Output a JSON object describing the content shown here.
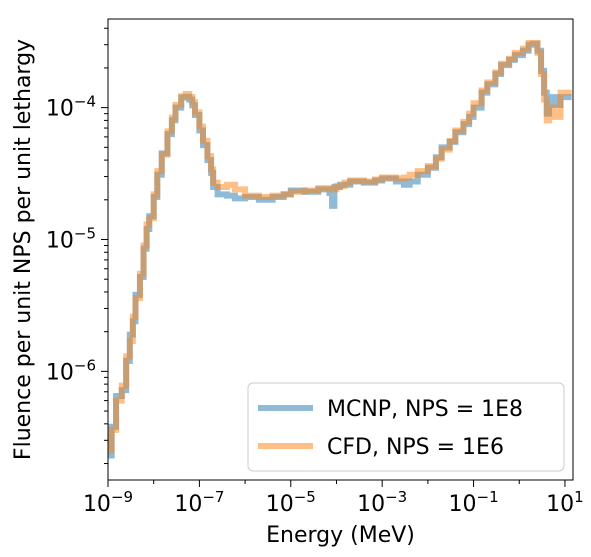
{
  "chart_data": {
    "type": "line",
    "step": true,
    "xscale": "log",
    "yscale": "log",
    "xlabel": "Energy (MeV)",
    "ylabel": "Fluence per unit NPS per unit lethargy",
    "xlim": [
      1e-09,
      15
    ],
    "ylim": [
      1.5e-07,
      0.00047
    ],
    "legend_position": "lower-right",
    "grid": false,
    "x_ticks": [
      {
        "value": 1e-09,
        "base": "10",
        "exp": "−9"
      },
      {
        "value": 1e-07,
        "base": "10",
        "exp": "−7"
      },
      {
        "value": 1e-05,
        "base": "10",
        "exp": "−5"
      },
      {
        "value": 0.001,
        "base": "10",
        "exp": "−3"
      },
      {
        "value": 0.1,
        "base": "10",
        "exp": "−1"
      },
      {
        "value": 10,
        "base": "10",
        "exp": "1"
      }
    ],
    "y_ticks": [
      {
        "value": 1e-06,
        "base": "10",
        "exp": "−6"
      },
      {
        "value": 1e-05,
        "base": "10",
        "exp": "−5"
      },
      {
        "value": 0.0001,
        "base": "10",
        "exp": "−4"
      }
    ],
    "series": [
      {
        "name": "MCNP, NPS = 1E8",
        "color": "#1f77b4",
        "opacity": 0.5,
        "points": [
          [
            1e-09,
            2.3e-07
          ],
          [
            1.2e-09,
            3.8e-07
          ],
          [
            1.5e-09,
            6.5e-07
          ],
          [
            2e-09,
            7.2e-07
          ],
          [
            2.5e-09,
            1.2e-06
          ],
          [
            3e-09,
            1.9e-06
          ],
          [
            3.5e-09,
            2.4e-06
          ],
          [
            4e-09,
            3.8e-06
          ],
          [
            5e-09,
            5.2e-06
          ],
          [
            6e-09,
            8.5e-06
          ],
          [
            7e-09,
            1.2e-05
          ],
          [
            8e-09,
            1.5e-05
          ],
          [
            1e-08,
            2.1e-05
          ],
          [
            1.2e-08,
            3.1e-05
          ],
          [
            1.5e-08,
            4.5e-05
          ],
          [
            2e-08,
            6.3e-05
          ],
          [
            2.5e-08,
            8e-05
          ],
          [
            3e-08,
            0.0001
          ],
          [
            4e-08,
            0.000119
          ],
          [
            5e-08,
            0.000121
          ],
          [
            6e-08,
            0.000115
          ],
          [
            7e-08,
            0.000104
          ],
          [
            8e-08,
            8.8e-05
          ],
          [
            1e-07,
            6.7e-05
          ],
          [
            1.2e-07,
            5.2e-05
          ],
          [
            1.5e-07,
            4e-05
          ],
          [
            1.8e-07,
            3.2e-05
          ],
          [
            2e-07,
            2.5e-05
          ],
          [
            2.5e-07,
            2.2e-05
          ],
          [
            4e-07,
            2.15e-05
          ],
          [
            6e-07,
            2.05e-05
          ],
          [
            1e-06,
            2.1e-05
          ],
          [
            2e-06,
            2e-05
          ],
          [
            4e-06,
            2.1e-05
          ],
          [
            7e-06,
            2.2e-05
          ],
          [
            1e-05,
            2.35e-05
          ],
          [
            2e-05,
            2.3e-05
          ],
          [
            4e-05,
            2.4e-05
          ],
          [
            7e-05,
            2.25e-05
          ],
          [
            8e-05,
            1.8e-05
          ],
          [
            9e-05,
            2.5e-05
          ],
          [
            0.00012,
            2.6e-05
          ],
          [
            0.0002,
            2.75e-05
          ],
          [
            0.0004,
            2.7e-05
          ],
          [
            0.0007,
            2.8e-05
          ],
          [
            0.001,
            2.9e-05
          ],
          [
            0.002,
            2.75e-05
          ],
          [
            0.003,
            2.6e-05
          ],
          [
            0.004,
            2.75e-05
          ],
          [
            0.006,
            3.1e-05
          ],
          [
            0.01,
            3.5e-05
          ],
          [
            0.015,
            4.2e-05
          ],
          [
            0.02,
            5e-05
          ],
          [
            0.03,
            5.5e-05
          ],
          [
            0.04,
            6.5e-05
          ],
          [
            0.06,
            7.5e-05
          ],
          [
            0.08,
            8.5e-05
          ],
          [
            0.1,
            0.0001
          ],
          [
            0.15,
            0.00013
          ],
          [
            0.2,
            0.00015
          ],
          [
            0.3,
            0.00018
          ],
          [
            0.4,
            0.00021
          ],
          [
            0.6,
            0.00023
          ],
          [
            0.8,
            0.00025
          ],
          [
            1.2,
            0.00027
          ],
          [
            1.6,
            0.0003
          ],
          [
            2.0,
            0.000305
          ],
          [
            2.5,
            0.00027
          ],
          [
            3.0,
            0.00019
          ],
          [
            3.5,
            0.00013
          ],
          [
            4.0,
            9e-05
          ],
          [
            4.5,
            0.00012
          ],
          [
            6,
            0.000105
          ],
          [
            8,
            0.00012
          ],
          [
            10,
            0.00012
          ]
        ]
      },
      {
        "name": "CFD, NPS = 1E6",
        "color": "#ff7f0e",
        "opacity": 0.5,
        "points": [
          [
            1e-09,
            2.5e-07
          ],
          [
            1.2e-09,
            3.6e-07
          ],
          [
            1.5e-09,
            6e-07
          ],
          [
            2e-09,
            7.8e-07
          ],
          [
            2.5e-09,
            1.3e-06
          ],
          [
            3e-09,
            1.7e-06
          ],
          [
            3.5e-09,
            2.6e-06
          ],
          [
            4e-09,
            3.6e-06
          ],
          [
            5e-09,
            5.5e-06
          ],
          [
            6e-09,
            9e-06
          ],
          [
            7e-09,
            1.3e-05
          ],
          [
            8e-09,
            1.45e-05
          ],
          [
            1e-08,
            2.2e-05
          ],
          [
            1.2e-08,
            3.3e-05
          ],
          [
            1.5e-08,
            4.4e-05
          ],
          [
            2e-08,
            6.6e-05
          ],
          [
            2.5e-08,
            8.4e-05
          ],
          [
            3e-08,
            0.000105
          ],
          [
            4e-08,
            0.000122
          ],
          [
            5e-08,
            0.000127
          ],
          [
            6e-08,
            0.00012
          ],
          [
            7e-08,
            0.00011
          ],
          [
            8e-08,
            9.2e-05
          ],
          [
            1e-07,
            7.2e-05
          ],
          [
            1.2e-07,
            5.6e-05
          ],
          [
            1.5e-07,
            4.3e-05
          ],
          [
            1.8e-07,
            3.4e-05
          ],
          [
            2e-07,
            2.7e-05
          ],
          [
            2.5e-07,
            2.5e-05
          ],
          [
            4e-07,
            2.6e-05
          ],
          [
            6e-07,
            2.4e-05
          ],
          [
            1e-06,
            2.15e-05
          ],
          [
            2e-06,
            2.1e-05
          ],
          [
            4e-06,
            2.15e-05
          ],
          [
            7e-06,
            2.2e-05
          ],
          [
            1e-05,
            2.3e-05
          ],
          [
            2e-05,
            2.35e-05
          ],
          [
            4e-05,
            2.45e-05
          ],
          [
            7e-05,
            2.4e-05
          ],
          [
            0.0001,
            2.55e-05
          ],
          [
            0.00015,
            2.7e-05
          ],
          [
            0.0002,
            2.8e-05
          ],
          [
            0.0004,
            2.75e-05
          ],
          [
            0.0007,
            2.85e-05
          ],
          [
            0.001,
            2.95e-05
          ],
          [
            0.002,
            2.9e-05
          ],
          [
            0.003,
            2.95e-05
          ],
          [
            0.004,
            3.1e-05
          ],
          [
            0.006,
            3.3e-05
          ],
          [
            0.01,
            3.6e-05
          ],
          [
            0.015,
            4.1e-05
          ],
          [
            0.02,
            4.8e-05
          ],
          [
            0.03,
            5.6e-05
          ],
          [
            0.04,
            6.7e-05
          ],
          [
            0.06,
            7.8e-05
          ],
          [
            0.08,
            9e-05
          ],
          [
            0.1,
            0.000108
          ],
          [
            0.15,
            0.000135
          ],
          [
            0.2,
            0.000155
          ],
          [
            0.3,
            0.000185
          ],
          [
            0.4,
            0.000215
          ],
          [
            0.6,
            0.000235
          ],
          [
            0.8,
            0.00026
          ],
          [
            1.2,
            0.00028
          ],
          [
            1.6,
            0.00031
          ],
          [
            2.0,
            0.00031
          ],
          [
            2.5,
            0.00026
          ],
          [
            3.0,
            0.00018
          ],
          [
            3.5,
            0.000115
          ],
          [
            4.0,
            8e-05
          ],
          [
            4.5,
            0.0001
          ],
          [
            6,
            8.5e-05
          ],
          [
            8,
            0.00013
          ],
          [
            10,
            0.00013
          ]
        ]
      }
    ]
  }
}
